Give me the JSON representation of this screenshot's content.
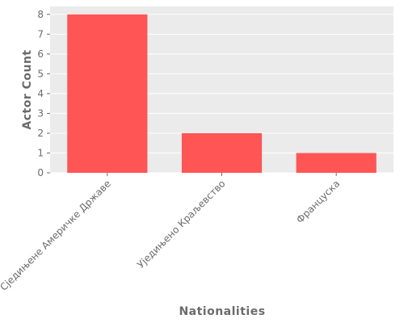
{
  "chart_data": {
    "type": "bar",
    "categories": [
      "Сједињене Америчке Државе",
      "Уједињено Краљевство",
      "Француска"
    ],
    "values": [
      8,
      2,
      1
    ],
    "xlabel": "Nationalities",
    "ylabel": "Actor Count",
    "ylim": [
      0,
      8.4
    ],
    "yticks": [
      0,
      1,
      2,
      3,
      4,
      5,
      6,
      7,
      8
    ],
    "grid": true,
    "legend": "none",
    "colors": {
      "bar": "#ff5555",
      "background": "#ebebeb",
      "grid": "#ffffff",
      "text": "#6b6b6b"
    }
  }
}
